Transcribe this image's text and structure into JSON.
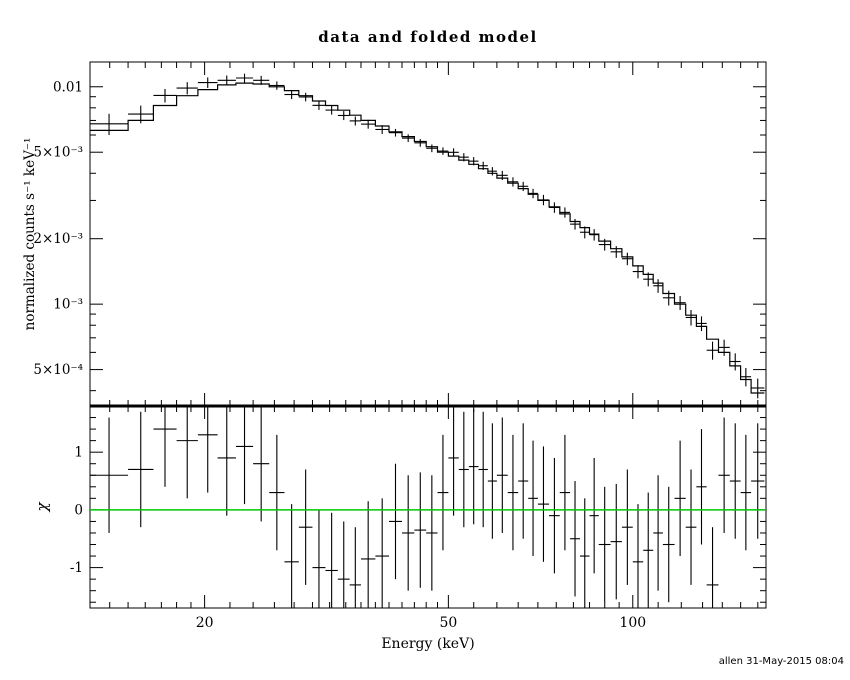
{
  "footer": {
    "timestamp": "allen 31-May-2015 08:04"
  },
  "chart_data": {
    "type": "line",
    "title": "data and folded model",
    "xlabel": "Energy (keV)",
    "ylabel_top": "normalized counts s⁻¹ keV⁻¹",
    "ylabel_bottom": "χ",
    "x_scale": "log",
    "x_range": [
      13,
      165
    ],
    "y_top_scale": "log",
    "y_top_range": [
      0.00034,
      0.013
    ],
    "y_bottom_scale": "linear",
    "y_bottom_range": [
      -1.7,
      1.8
    ],
    "grid": "off",
    "legend": "none",
    "x_ticks": [
      {
        "value": 20,
        "label": "20"
      },
      {
        "value": 50,
        "label": "50"
      },
      {
        "value": 100,
        "label": "100"
      }
    ],
    "x_minor_ticks": [
      14,
      15,
      16,
      17,
      18,
      19,
      22,
      24,
      26,
      28,
      30,
      32,
      34,
      36,
      38,
      40,
      42,
      44,
      46,
      48,
      55,
      60,
      65,
      70,
      75,
      80,
      85,
      90,
      95,
      110,
      120,
      130,
      140,
      150,
      160
    ],
    "y_ticks_top": [
      {
        "value": 0.01,
        "label": "0.01"
      },
      {
        "value": 0.005,
        "label": "5×10⁻³"
      },
      {
        "value": 0.002,
        "label": "2×10⁻³"
      },
      {
        "value": 0.001,
        "label": "10⁻³"
      },
      {
        "value": 0.0005,
        "label": "5×10⁻⁴"
      }
    ],
    "y_ticks_bottom": [
      {
        "value": 1,
        "label": "1"
      },
      {
        "value": 0,
        "label": "0"
      },
      {
        "value": -1,
        "label": "-1"
      }
    ],
    "colors": {
      "data": "#000000",
      "model": "#000000",
      "zero_line": "#00c800",
      "frame": "#000000",
      "background": "#ffffff"
    },
    "series": {
      "bin_edges_keV": [
        13,
        15,
        16.5,
        18,
        19.5,
        21,
        22.5,
        24,
        25.5,
        27,
        28.5,
        30,
        31.5,
        33,
        34.5,
        36,
        38,
        40,
        42,
        44,
        46,
        48,
        50,
        52,
        54,
        56,
        58,
        60,
        62.5,
        65,
        67.5,
        70,
        73,
        76,
        79,
        82,
        85,
        88,
        92,
        96,
        100,
        104,
        108,
        112,
        117,
        122,
        127,
        132,
        138,
        144,
        150,
        156,
        164
      ],
      "model_counts": [
        0.0063,
        0.007,
        0.0082,
        0.0091,
        0.0097,
        0.0102,
        0.0104,
        0.0103,
        0.01,
        0.0096,
        0.0091,
        0.0086,
        0.0082,
        0.0078,
        0.0074,
        0.007,
        0.0066,
        0.0062,
        0.0059,
        0.0056,
        0.0053,
        0.005,
        0.0048,
        0.0046,
        0.0044,
        0.0042,
        0.004,
        0.0038,
        0.0036,
        0.0034,
        0.0032,
        0.003,
        0.0028,
        0.0026,
        0.0024,
        0.00225,
        0.0021,
        0.00195,
        0.0018,
        0.00165,
        0.0015,
        0.00137,
        0.00125,
        0.00112,
        0.001,
        0.00089,
        0.00079,
        0.00069,
        0.0006,
        0.00052,
        0.00045,
        0.00039
      ],
      "chi": [
        0.6,
        0.7,
        1.4,
        1.2,
        1.3,
        0.9,
        1.1,
        0.8,
        0.3,
        -0.9,
        -0.3,
        -1.0,
        -1.05,
        -1.2,
        -1.3,
        -0.85,
        -0.8,
        -0.2,
        -0.4,
        -0.35,
        -0.4,
        0.3,
        0.9,
        0.7,
        0.75,
        0.7,
        0.5,
        0.6,
        0.3,
        0.5,
        0.2,
        0.1,
        -0.1,
        0.3,
        -0.5,
        -0.8,
        -0.1,
        -0.6,
        -0.55,
        -0.3,
        -0.9,
        -0.7,
        -0.4,
        -0.6,
        0.2,
        -0.3,
        0.4,
        -1.3,
        0.6,
        0.5,
        0.3,
        0.5
      ],
      "rel_err": [
        0.12,
        0.1,
        0.08,
        0.07,
        0.06,
        0.055,
        0.05,
        0.05,
        0.045,
        0.045,
        0.045,
        0.045,
        0.045,
        0.045,
        0.045,
        0.045,
        0.045,
        0.04,
        0.04,
        0.04,
        0.04,
        0.04,
        0.045,
        0.045,
        0.045,
        0.045,
        0.045,
        0.05,
        0.05,
        0.05,
        0.05,
        0.055,
        0.055,
        0.055,
        0.055,
        0.06,
        0.06,
        0.06,
        0.06,
        0.065,
        0.065,
        0.07,
        0.07,
        0.075,
        0.075,
        0.08,
        0.08,
        0.085,
        0.09,
        0.095,
        0.1,
        0.11
      ],
      "chi_err": 1.0
    }
  }
}
